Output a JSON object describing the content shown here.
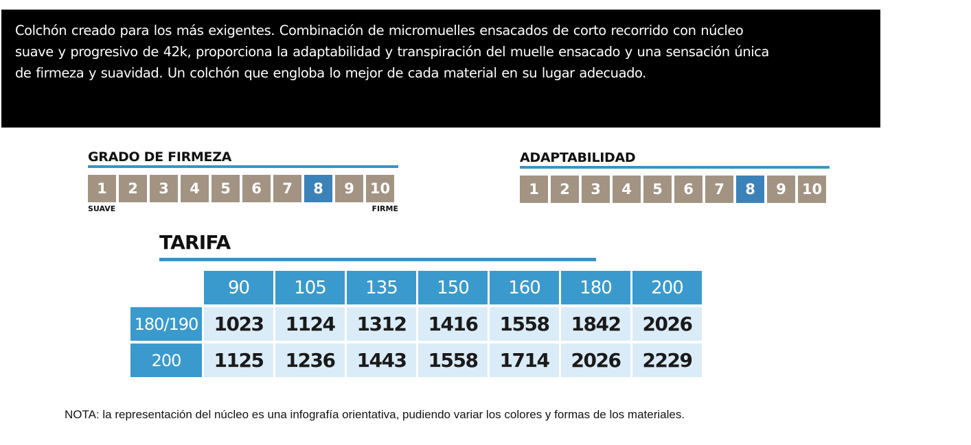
{
  "description": {
    "lines": [
      "Colchón creado para los más exigentes. Combinación de micromuelles ensacados de corto recorrido con núcleo",
      "suave y progresivo de 42k, proporciona la adaptabilidad y transpiración del muelle ensacado y una sensación única",
      "de firmeza y suavidad. Un colchón que engloba lo mejor de cada material en su lugar adecuado."
    ]
  },
  "firmeza": {
    "title": "GRADO DE FIRMEZA",
    "cells": [
      "1",
      "2",
      "3",
      "4",
      "5",
      "6",
      "7",
      "8",
      "9",
      "10"
    ],
    "selected": 8,
    "low_label": "SUAVE",
    "high_label": "FIRME"
  },
  "adaptabilidad": {
    "title": "ADAPTABILIDAD",
    "cells": [
      "1",
      "2",
      "3",
      "4",
      "5",
      "6",
      "7",
      "8",
      "9",
      "10"
    ],
    "selected": 8
  },
  "tarifa": {
    "title": "TARIFA",
    "columns": [
      "90",
      "105",
      "135",
      "150",
      "160",
      "180",
      "200"
    ],
    "rows": [
      {
        "label": "180/190",
        "values": [
          "1023",
          "1124",
          "1312",
          "1416",
          "1558",
          "1842",
          "2026"
        ]
      },
      {
        "label": "200",
        "values": [
          "1125",
          "1236",
          "1443",
          "1558",
          "1714",
          "2026",
          "2229"
        ]
      }
    ]
  },
  "nota": "NOTA: la representación del núcleo es una infografía orientativa, pudiendo variar los colores y formas de los materiales.",
  "colors": {
    "scale_inactive": "#a39382",
    "scale_active": "#3b82b8",
    "accent_blue": "#3a9ace",
    "cell_light": "#daecf7"
  }
}
